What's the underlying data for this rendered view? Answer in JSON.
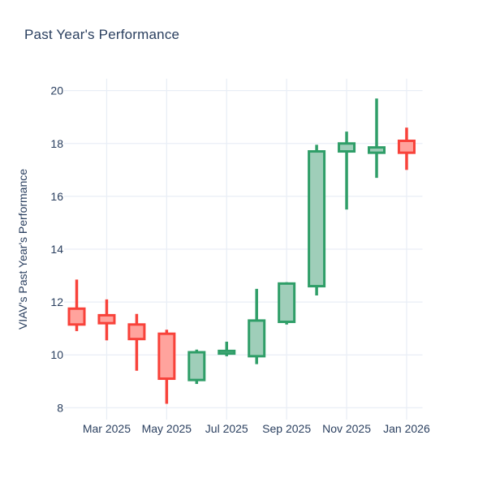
{
  "chart_data": {
    "type": "candlestick",
    "title": "Past Year's Performance",
    "ylabel": "VIAV's Past Year's Performance",
    "xlabel": "",
    "legend": false,
    "grid": true,
    "ylim": [
      7.55,
      20.45
    ],
    "y_ticks": [
      8,
      10,
      12,
      14,
      16,
      18,
      20
    ],
    "x_tick_labels": [
      "Mar 2025",
      "May 2025",
      "Jul 2025",
      "Sep 2025",
      "Nov 2025",
      "Jan 2026"
    ],
    "x_tick_indices": [
      1,
      3,
      5,
      7,
      9,
      11
    ],
    "series": [
      {
        "month": "Feb 2025",
        "open": 11.75,
        "high": 12.85,
        "low": 10.9,
        "close": 11.15
      },
      {
        "month": "Mar 2025",
        "open": 11.5,
        "high": 12.1,
        "low": 10.55,
        "close": 11.2
      },
      {
        "month": "Apr 2025",
        "open": 11.15,
        "high": 11.55,
        "low": 9.4,
        "close": 10.6
      },
      {
        "month": "May 2025",
        "open": 10.8,
        "high": 10.95,
        "low": 8.15,
        "close": 9.1
      },
      {
        "month": "Jun 2025",
        "open": 9.05,
        "high": 10.2,
        "low": 8.9,
        "close": 10.1
      },
      {
        "month": "Jul 2025",
        "open": 10.05,
        "high": 10.5,
        "low": 9.95,
        "close": 10.15
      },
      {
        "month": "Aug 2025",
        "open": 9.95,
        "high": 12.5,
        "low": 9.65,
        "close": 11.3
      },
      {
        "month": "Sep 2025",
        "open": 11.25,
        "high": 12.75,
        "low": 11.15,
        "close": 12.7
      },
      {
        "month": "Oct 2025",
        "open": 12.6,
        "high": 17.95,
        "low": 12.25,
        "close": 17.7
      },
      {
        "month": "Nov 2025",
        "open": 17.7,
        "high": 18.45,
        "low": 15.5,
        "close": 18.0
      },
      {
        "month": "Dec 2025",
        "open": 17.65,
        "high": 19.7,
        "low": 16.7,
        "close": 17.85
      },
      {
        "month": "Jan 2026",
        "open": 18.1,
        "high": 18.6,
        "low": 17.0,
        "close": 17.65
      }
    ],
    "colors": {
      "increasing_line": "#2f9e68",
      "increasing_fill": "#9fceb9",
      "decreasing_line": "#f8423a",
      "decreasing_fill": "#ffa39d",
      "grid": "#e9eef6",
      "text": "#2a3f5f",
      "background": "#ffffff"
    }
  }
}
